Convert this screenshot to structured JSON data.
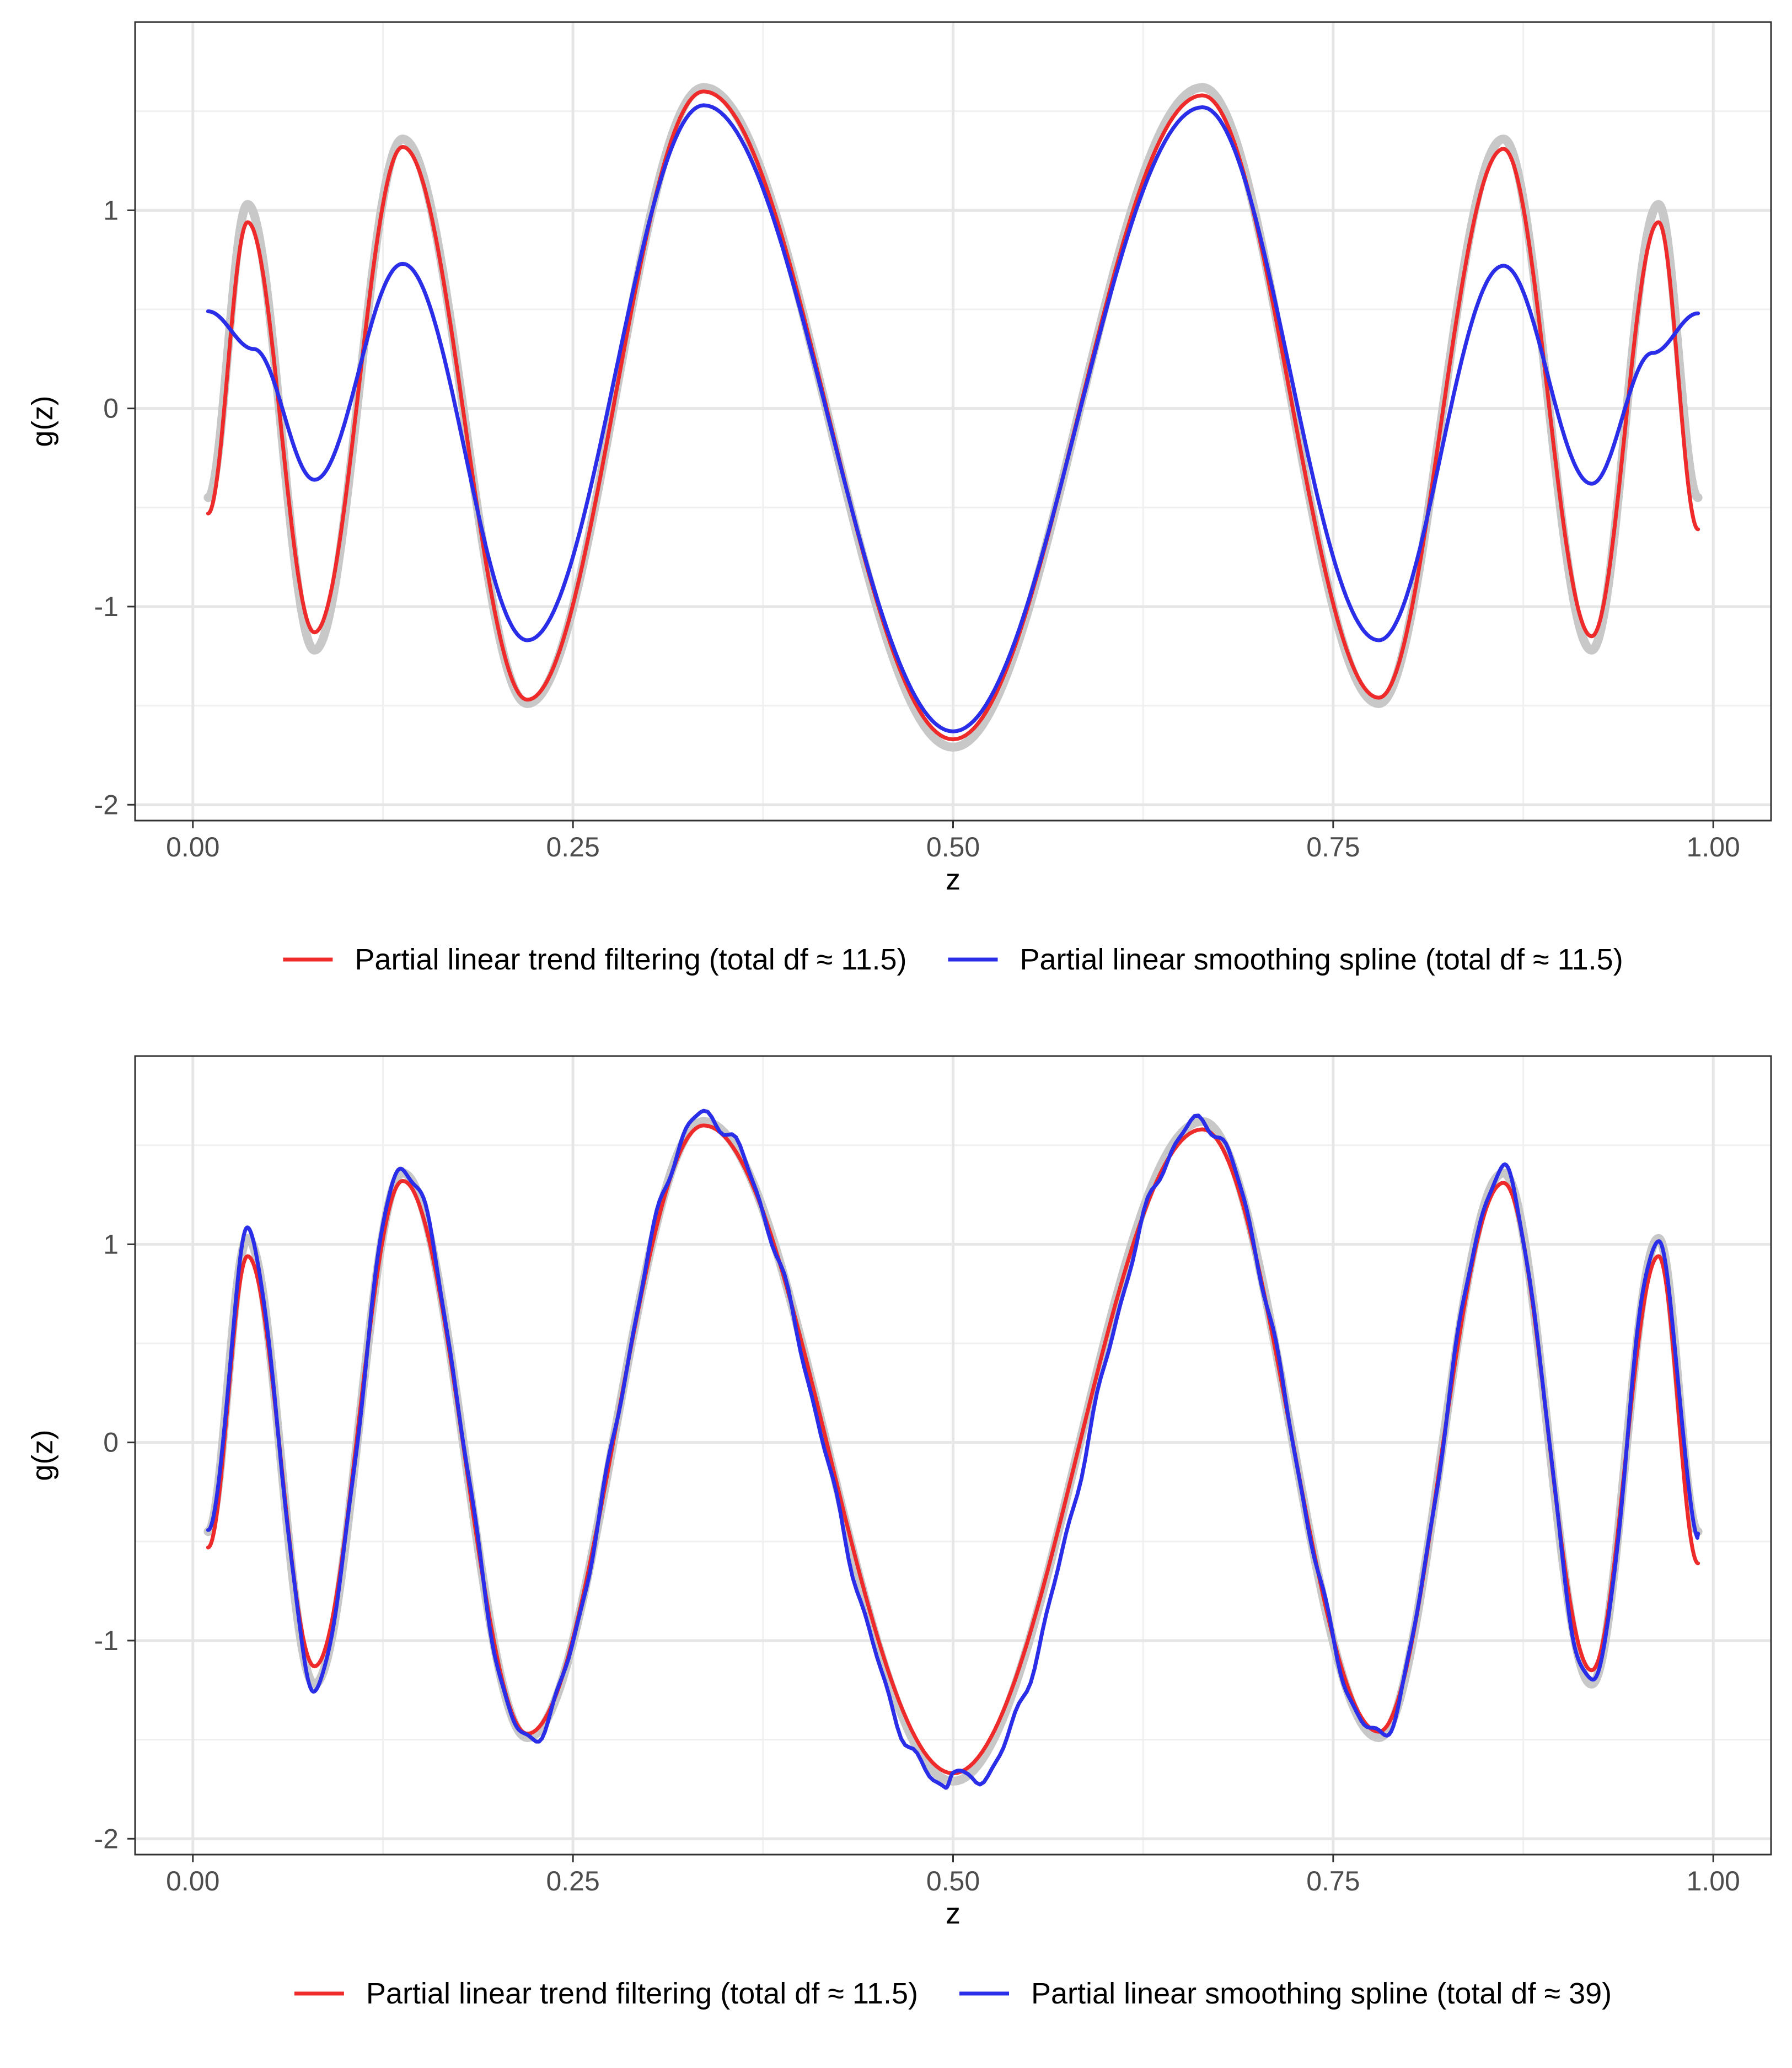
{
  "chart_data": [
    {
      "type": "line",
      "xlabel": "z",
      "ylabel": "g(z)",
      "xlim": [
        -0.038,
        1.038
      ],
      "ylim": [
        -2.08,
        1.95
      ],
      "x_ticks": [
        0.0,
        0.25,
        0.5,
        0.75,
        1.0
      ],
      "x_tick_labels": [
        "0.00",
        "0.25",
        "0.50",
        "0.75",
        "1.00"
      ],
      "y_ticks": [
        -2,
        -1,
        0,
        1
      ],
      "y_tick_labels": [
        "-2",
        "-1",
        "0",
        "1"
      ],
      "grid": true,
      "legend_position": "bottom",
      "x": [
        0.01,
        0.036,
        0.08,
        0.138,
        0.22,
        0.336,
        0.5,
        0.664,
        0.78,
        0.862,
        0.92,
        0.964,
        0.99
      ],
      "series": [
        {
          "name": "",
          "color": "#c8c8c8",
          "role": "true function",
          "values": [
            -0.45,
            1.03,
            -1.22,
            1.36,
            -1.49,
            1.62,
            -1.71,
            1.62,
            -1.49,
            1.36,
            -1.22,
            1.03,
            -0.45
          ]
        },
        {
          "name": "Partial linear trend filtering (total df ≈ 11.5)",
          "color": "#ee2a2a",
          "values": [
            -0.53,
            0.94,
            -1.13,
            1.32,
            -1.47,
            1.6,
            -1.67,
            1.58,
            -1.46,
            1.31,
            -1.15,
            0.94,
            -0.61
          ]
        },
        {
          "name": "Partial linear smoothing spline (total df ≈ 11.5)",
          "color": "#2b2ee8",
          "x": [
            0.01,
            0.04,
            0.08,
            0.138,
            0.22,
            0.336,
            0.5,
            0.664,
            0.78,
            0.862,
            0.92,
            0.96,
            0.99
          ],
          "values": [
            0.49,
            0.3,
            -0.36,
            0.73,
            -1.17,
            1.53,
            -1.63,
            1.52,
            -1.17,
            0.72,
            -0.38,
            0.28,
            0.48
          ]
        }
      ]
    },
    {
      "type": "line",
      "xlabel": "z",
      "ylabel": "g(z)",
      "xlim": [
        -0.038,
        1.038
      ],
      "ylim": [
        -2.08,
        1.95
      ],
      "x_ticks": [
        0.0,
        0.25,
        0.5,
        0.75,
        1.0
      ],
      "x_tick_labels": [
        "0.00",
        "0.25",
        "0.50",
        "0.75",
        "1.00"
      ],
      "y_ticks": [
        -2,
        -1,
        0,
        1
      ],
      "y_tick_labels": [
        "-2",
        "-1",
        "0",
        "1"
      ],
      "grid": true,
      "legend_position": "bottom",
      "x": [
        0.01,
        0.036,
        0.08,
        0.138,
        0.22,
        0.336,
        0.5,
        0.664,
        0.78,
        0.862,
        0.92,
        0.964,
        0.99
      ],
      "series": [
        {
          "name": "",
          "color": "#c8c8c8",
          "role": "true function",
          "values": [
            -0.45,
            1.03,
            -1.22,
            1.36,
            -1.49,
            1.62,
            -1.71,
            1.62,
            -1.49,
            1.36,
            -1.22,
            1.03,
            -0.45
          ]
        },
        {
          "name": "Partial linear trend filtering (total df ≈ 11.5)",
          "color": "#ee2a2a",
          "values": [
            -0.53,
            0.94,
            -1.13,
            1.32,
            -1.47,
            1.6,
            -1.67,
            1.58,
            -1.46,
            1.31,
            -1.15,
            0.94,
            -0.61
          ]
        },
        {
          "name": "Partial linear smoothing spline (total df ≈ 39)",
          "color": "#2b2ee8",
          "x": [
            0.01,
            0.036,
            0.08,
            0.138,
            0.22,
            0.336,
            0.495,
            0.5,
            0.51,
            0.664,
            0.78,
            0.862,
            0.92,
            0.964,
            0.99
          ],
          "values": [
            -0.45,
            1.04,
            -1.22,
            1.39,
            -1.5,
            1.65,
            -1.72,
            -1.64,
            -1.72,
            1.62,
            -1.48,
            1.36,
            -1.22,
            1.03,
            -0.46
          ],
          "wiggle_amplitude": 0.03
        }
      ]
    }
  ]
}
